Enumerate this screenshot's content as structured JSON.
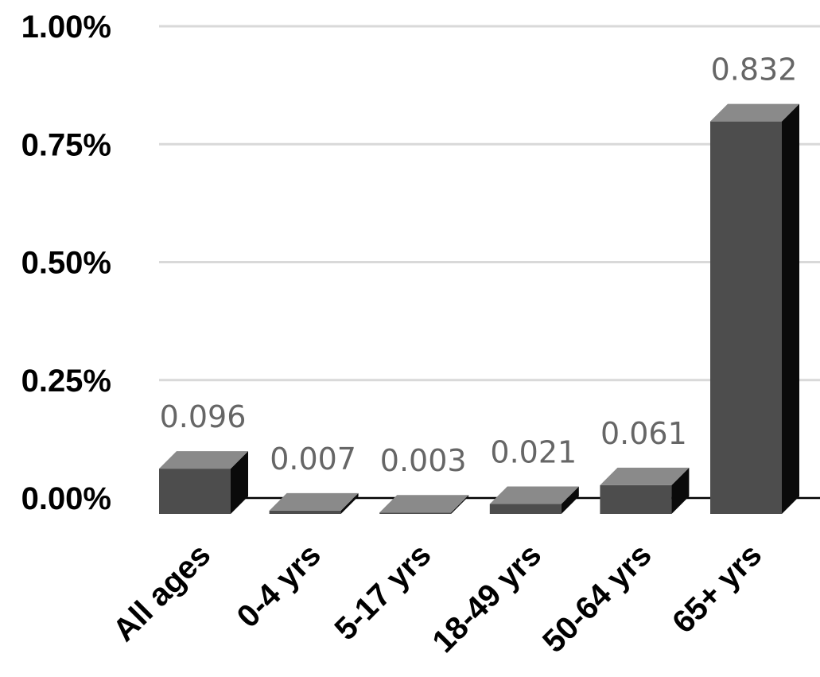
{
  "chart_data": {
    "type": "bar",
    "categories": [
      "All ages",
      "0-4 yrs",
      "5-17 yrs",
      "18-49 yrs",
      "50-64 yrs",
      "65+ yrs"
    ],
    "values": [
      0.096,
      0.007,
      0.003,
      0.021,
      0.061,
      0.832
    ],
    "data_labels": [
      "0.096",
      "0.007",
      "0.003",
      "0.021",
      "0.061",
      "0.832"
    ],
    "y_ticks": [
      {
        "value": 0,
        "label": "0.00%"
      },
      {
        "value": 0.25,
        "label": "0.25%"
      },
      {
        "value": 0.5,
        "label": "0.50%"
      },
      {
        "value": 0.75,
        "label": "0.75%"
      },
      {
        "value": 1.0,
        "label": "1.00%"
      }
    ],
    "ylim": [
      0,
      1.0
    ],
    "grid": true,
    "style": "3d-column",
    "colors": {
      "bar_front": "#4d4d4d",
      "bar_top": "#8a8a8a",
      "bar_side": "#0a0a0a",
      "gridline": "#d9d9d9",
      "axis": "#000000",
      "data_label": "#666666"
    }
  }
}
